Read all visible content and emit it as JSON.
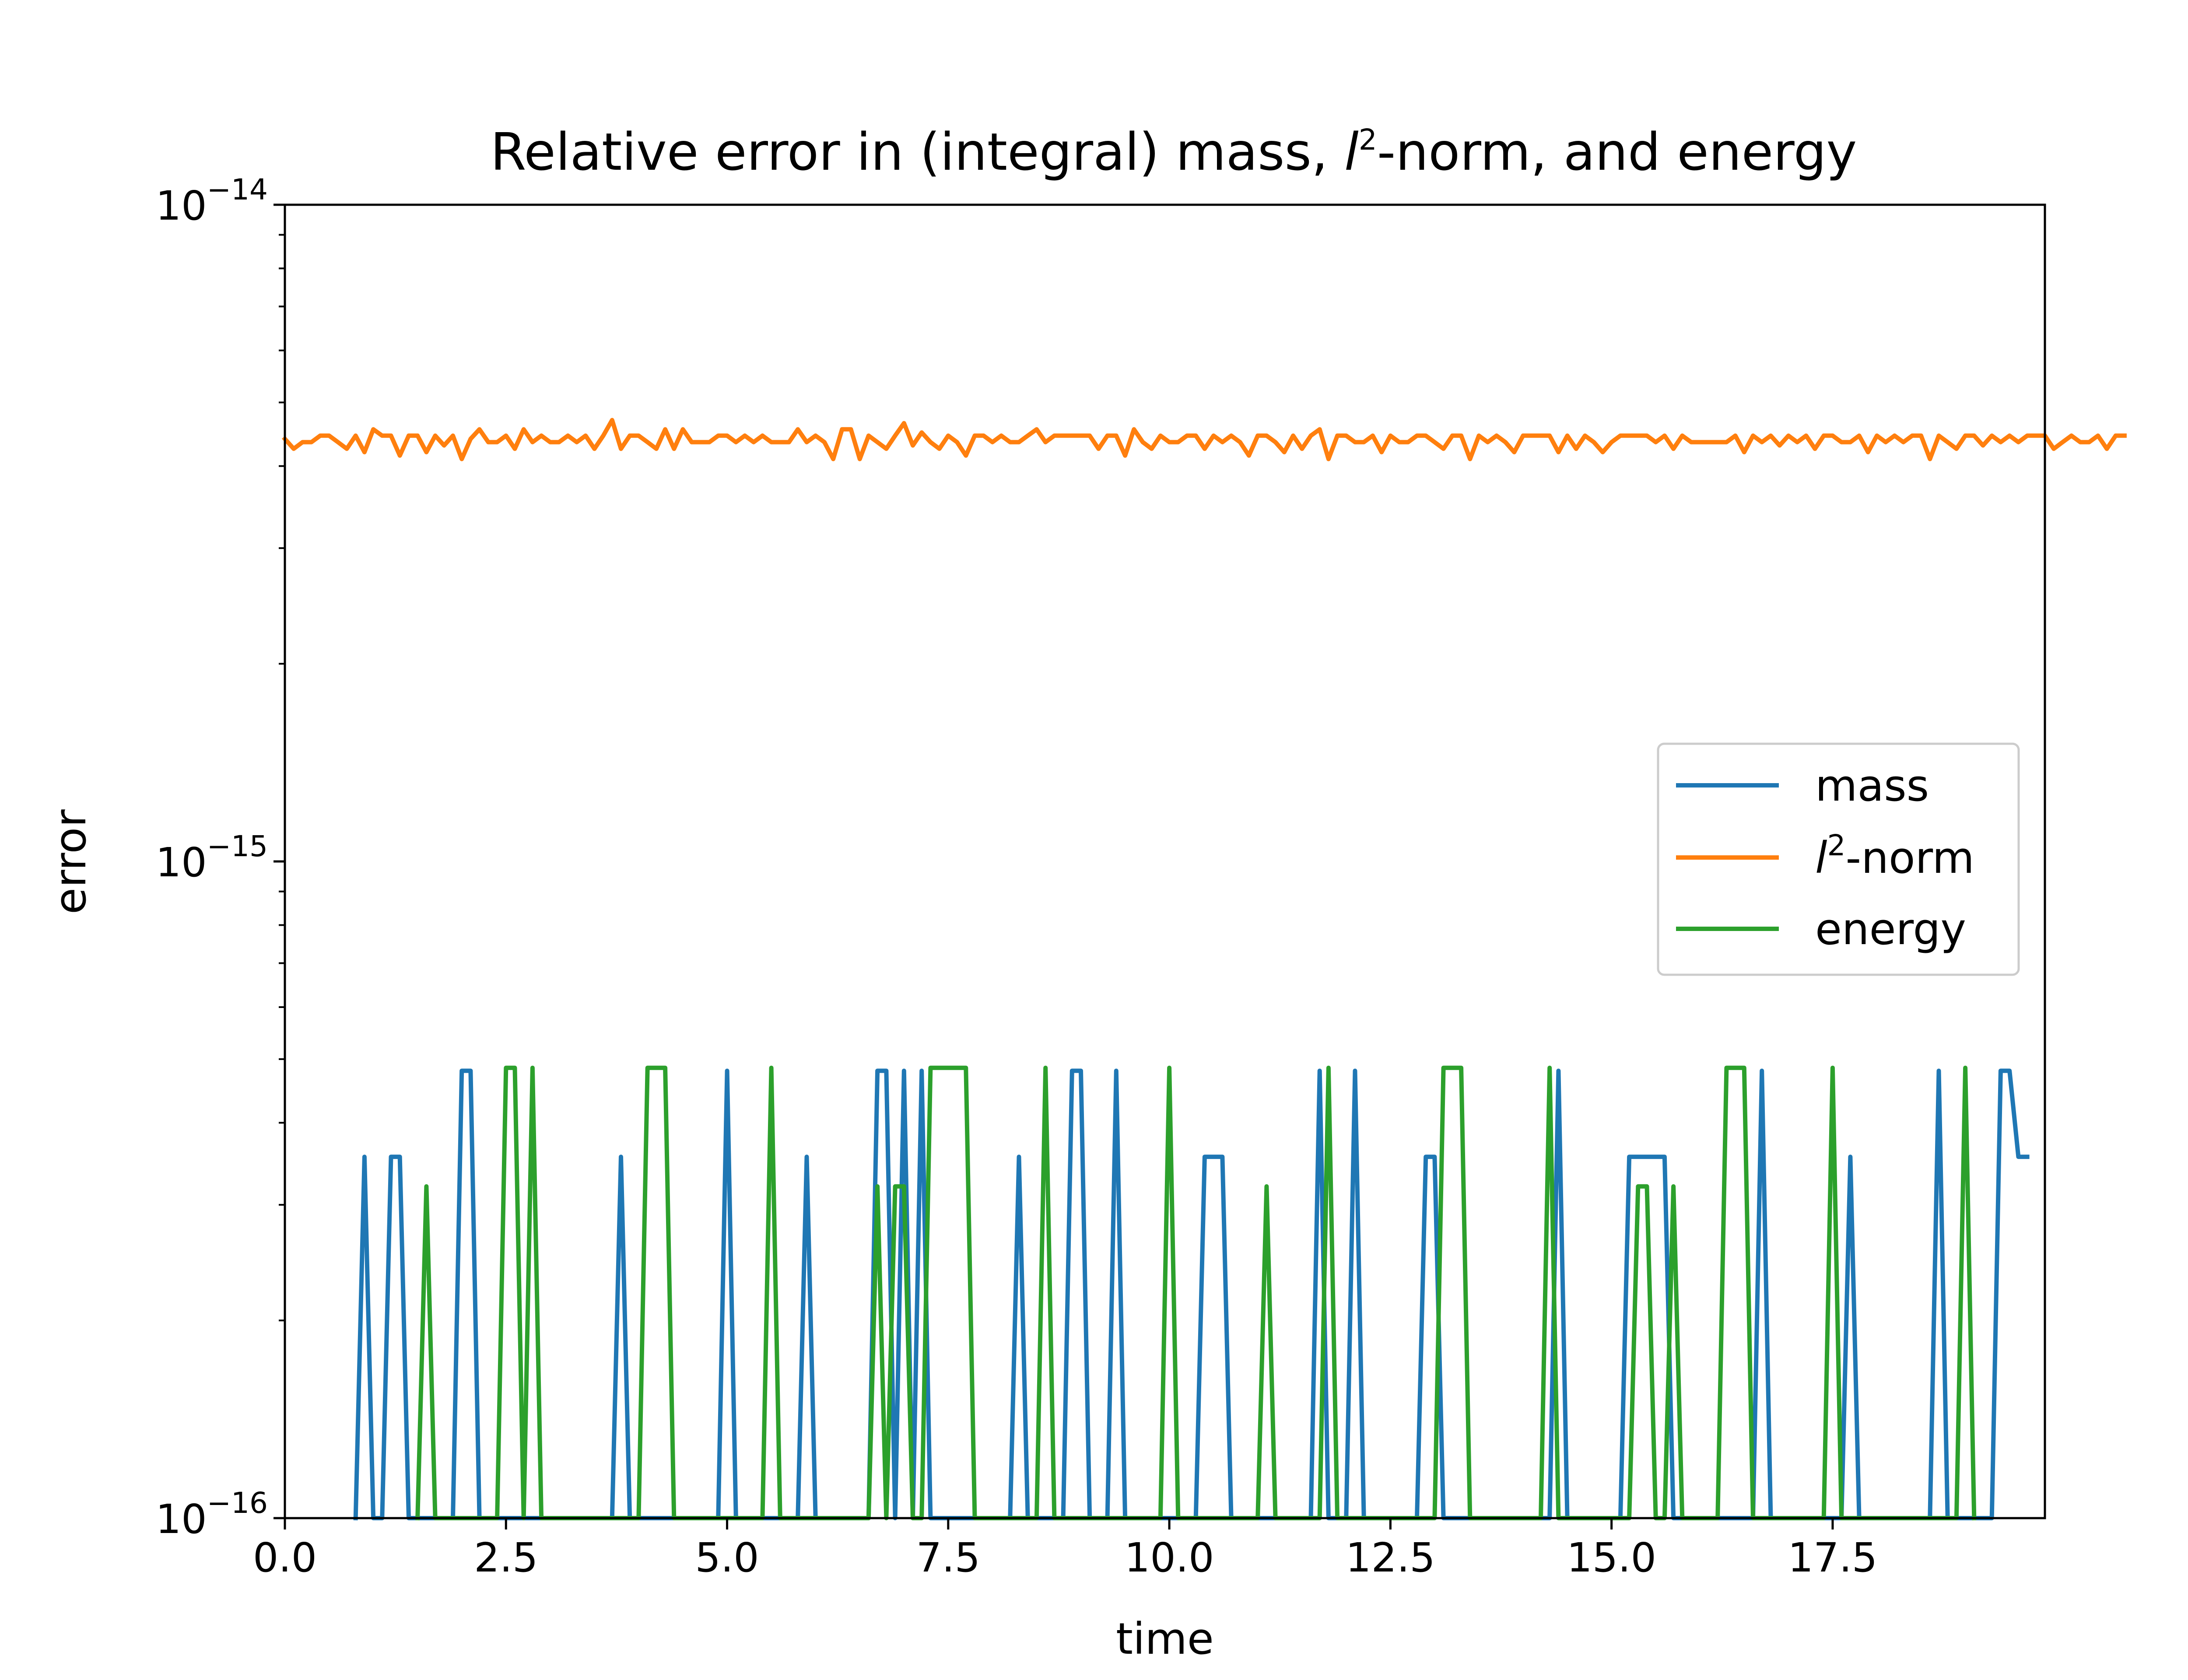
{
  "chart_data": {
    "type": "line",
    "title_parts": {
      "pre": "Relative error in (integral) mass, ",
      "l": "l",
      "exp": "2",
      "post": "-norm, and energy"
    },
    "xlabel": "time",
    "ylabel": "error",
    "xlim": [
      0.0,
      19.9
    ],
    "ylim": [
      1e-16,
      1e-14
    ],
    "yscale": "log",
    "grid": false,
    "legend_position": "center-right",
    "xticks": [
      {
        "value": 0.0,
        "label": "0.0"
      },
      {
        "value": 2.5,
        "label": "2.5"
      },
      {
        "value": 5.0,
        "label": "5.0"
      },
      {
        "value": 7.5,
        "label": "7.5"
      },
      {
        "value": 10.0,
        "label": "10.0"
      },
      {
        "value": 12.5,
        "label": "12.5"
      },
      {
        "value": 15.0,
        "label": "15.0"
      },
      {
        "value": 17.5,
        "label": "17.5"
      }
    ],
    "yticks": [
      {
        "value": 1e-16,
        "base": "10",
        "exp": "−16"
      },
      {
        "value": 1e-15,
        "base": "10",
        "exp": "−15"
      },
      {
        "value": 1e-14,
        "base": "10",
        "exp": "−14"
      }
    ],
    "series": [
      {
        "key": "mass",
        "name": "mass",
        "color": "#1f77b4",
        "spikes": [
          [
            0.9,
            0.9,
            3.55e-16
          ],
          [
            1.2,
            1.3,
            3.55e-16
          ],
          [
            2.0,
            2.1,
            4.8e-16
          ],
          [
            3.8,
            3.8,
            3.55e-16
          ],
          [
            5.0,
            5.0,
            4.8e-16
          ],
          [
            5.9,
            5.9,
            3.55e-16
          ],
          [
            6.7,
            6.8,
            4.8e-16
          ],
          [
            7.0,
            7.0,
            4.8e-16
          ],
          [
            7.2,
            7.2,
            4.8e-16
          ],
          [
            8.3,
            8.3,
            3.55e-16
          ],
          [
            8.9,
            9.0,
            4.8e-16
          ],
          [
            9.4,
            9.4,
            4.8e-16
          ],
          [
            10.4,
            10.6,
            3.55e-16
          ],
          [
            11.7,
            11.7,
            4.8e-16
          ],
          [
            12.1,
            12.1,
            4.8e-16
          ],
          [
            12.9,
            13.0,
            3.55e-16
          ],
          [
            14.4,
            14.4,
            4.8e-16
          ],
          [
            15.2,
            15.6,
            3.55e-16
          ],
          [
            16.7,
            16.7,
            4.8e-16
          ],
          [
            17.7,
            17.7,
            3.55e-16
          ],
          [
            18.7,
            18.7,
            4.8e-16
          ]
        ],
        "tail": [
          [
            19.4,
            4.8e-16
          ],
          [
            19.5,
            4.8e-16
          ],
          [
            19.6,
            3.55e-16
          ],
          [
            19.7,
            3.55e-16
          ]
        ]
      },
      {
        "key": "l2",
        "name_parts": {
          "l": "l",
          "exp": "2",
          "post": "-norm"
        },
        "color": "#ff7f0e",
        "start": 0.0,
        "step": 0.1,
        "values": [
          4.4e-15,
          4.25e-15,
          4.35e-15,
          4.35e-15,
          4.45e-15,
          4.45e-15,
          4.35e-15,
          4.25e-15,
          4.45e-15,
          4.2e-15,
          4.55e-15,
          4.45e-15,
          4.45e-15,
          4.15e-15,
          4.45e-15,
          4.45e-15,
          4.2e-15,
          4.45e-15,
          4.3e-15,
          4.45e-15,
          4.1e-15,
          4.4e-15,
          4.55e-15,
          4.35e-15,
          4.35e-15,
          4.45e-15,
          4.25e-15,
          4.55e-15,
          4.35e-15,
          4.45e-15,
          4.35e-15,
          4.35e-15,
          4.45e-15,
          4.35e-15,
          4.45e-15,
          4.25e-15,
          4.45e-15,
          4.7e-15,
          4.25e-15,
          4.45e-15,
          4.45e-15,
          4.35e-15,
          4.25e-15,
          4.55e-15,
          4.25e-15,
          4.55e-15,
          4.35e-15,
          4.35e-15,
          4.35e-15,
          4.45e-15,
          4.45e-15,
          4.35e-15,
          4.45e-15,
          4.35e-15,
          4.45e-15,
          4.35e-15,
          4.35e-15,
          4.35e-15,
          4.55e-15,
          4.35e-15,
          4.45e-15,
          4.35e-15,
          4.1e-15,
          4.55e-15,
          4.55e-15,
          4.1e-15,
          4.45e-15,
          4.35e-15,
          4.25e-15,
          4.45e-15,
          4.65e-15,
          4.3e-15,
          4.5e-15,
          4.35e-15,
          4.25e-15,
          4.45e-15,
          4.35e-15,
          4.15e-15,
          4.45e-15,
          4.45e-15,
          4.35e-15,
          4.45e-15,
          4.35e-15,
          4.35e-15,
          4.45e-15,
          4.55e-15,
          4.35e-15,
          4.45e-15,
          4.45e-15,
          4.45e-15,
          4.45e-15,
          4.45e-15,
          4.25e-15,
          4.45e-15,
          4.45e-15,
          4.15e-15,
          4.55e-15,
          4.35e-15,
          4.25e-15,
          4.45e-15,
          4.35e-15,
          4.35e-15,
          4.45e-15,
          4.45e-15,
          4.25e-15,
          4.45e-15,
          4.35e-15,
          4.45e-15,
          4.35e-15,
          4.15e-15,
          4.45e-15,
          4.45e-15,
          4.35e-15,
          4.2e-15,
          4.45e-15,
          4.25e-15,
          4.45e-15,
          4.55e-15,
          4.1e-15,
          4.45e-15,
          4.45e-15,
          4.35e-15,
          4.35e-15,
          4.45e-15,
          4.2e-15,
          4.45e-15,
          4.35e-15,
          4.35e-15,
          4.45e-15,
          4.45e-15,
          4.35e-15,
          4.25e-15,
          4.45e-15,
          4.45e-15,
          4.1e-15,
          4.45e-15,
          4.35e-15,
          4.45e-15,
          4.35e-15,
          4.2e-15,
          4.45e-15,
          4.45e-15,
          4.45e-15,
          4.45e-15,
          4.2e-15,
          4.45e-15,
          4.25e-15,
          4.45e-15,
          4.35e-15,
          4.2e-15,
          4.35e-15,
          4.45e-15,
          4.45e-15,
          4.45e-15,
          4.45e-15,
          4.35e-15,
          4.45e-15,
          4.25e-15,
          4.45e-15,
          4.35e-15,
          4.35e-15,
          4.35e-15,
          4.35e-15,
          4.35e-15,
          4.45e-15,
          4.2e-15,
          4.45e-15,
          4.35e-15,
          4.45e-15,
          4.3e-15,
          4.45e-15,
          4.35e-15,
          4.45e-15,
          4.25e-15,
          4.45e-15,
          4.45e-15,
          4.35e-15,
          4.35e-15,
          4.45e-15,
          4.2e-15,
          4.45e-15,
          4.35e-15,
          4.45e-15,
          4.35e-15,
          4.45e-15,
          4.45e-15,
          4.1e-15,
          4.45e-15,
          4.35e-15,
          4.25e-15,
          4.45e-15,
          4.45e-15,
          4.3e-15,
          4.45e-15,
          4.35e-15,
          4.45e-15,
          4.35e-15,
          4.45e-15,
          4.45e-15,
          4.45e-15,
          4.25e-15,
          4.35e-15,
          4.45e-15,
          4.35e-15,
          4.35e-15,
          4.45e-15,
          4.25e-15,
          4.45e-15,
          4.45e-15
        ]
      },
      {
        "key": "energy",
        "name": "energy",
        "color": "#2ca02c",
        "spikes": [
          [
            1.6,
            1.6,
            3.2e-16
          ],
          [
            2.5,
            2.6,
            4.85e-16
          ],
          [
            2.8,
            2.8,
            4.85e-16
          ],
          [
            4.1,
            4.3,
            4.85e-16
          ],
          [
            5.5,
            5.5,
            4.85e-16
          ],
          [
            6.7,
            6.7,
            3.2e-16
          ],
          [
            6.9,
            7.0,
            3.2e-16
          ],
          [
            7.3,
            7.7,
            4.85e-16
          ],
          [
            8.6,
            8.6,
            4.85e-16
          ],
          [
            10.0,
            10.0,
            4.85e-16
          ],
          [
            11.1,
            11.1,
            3.2e-16
          ],
          [
            11.8,
            11.8,
            4.85e-16
          ],
          [
            13.1,
            13.3,
            4.85e-16
          ],
          [
            14.3,
            14.3,
            4.85e-16
          ],
          [
            15.3,
            15.4,
            3.2e-16
          ],
          [
            15.7,
            15.7,
            3.2e-16
          ],
          [
            16.3,
            16.5,
            4.85e-16
          ],
          [
            17.5,
            17.5,
            4.85e-16
          ],
          [
            19.0,
            19.0,
            4.85e-16
          ]
        ]
      }
    ]
  }
}
